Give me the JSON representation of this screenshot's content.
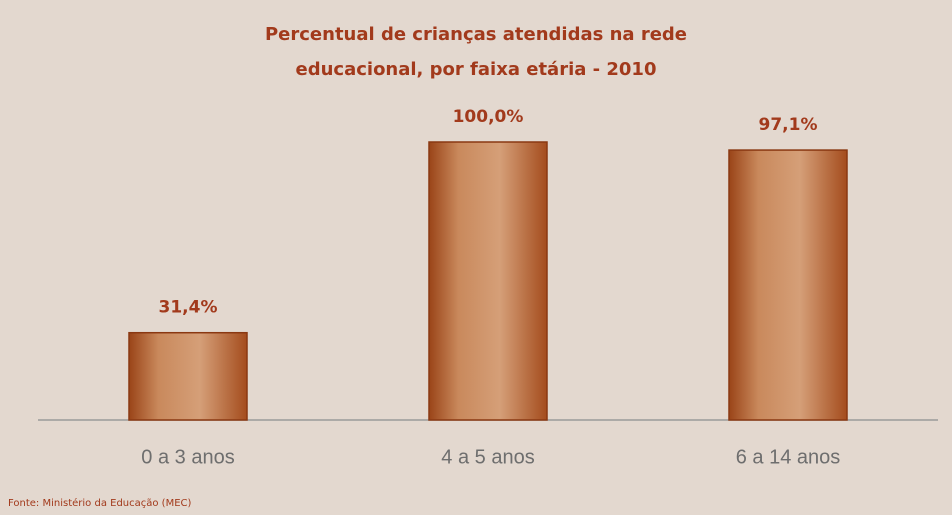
{
  "chart_data": {
    "type": "bar",
    "title": [
      "Percentual de crianças atendidas na rede",
      "educacional, por faixa etária - 2010"
    ],
    "categories": [
      "0 a 3 anos",
      "4 a 5 anos",
      "6 a 14 anos"
    ],
    "values": [
      31.4,
      100.0,
      97.1
    ],
    "value_labels": [
      "31,4%",
      "100,0%",
      "97,1%"
    ],
    "color": "#c0703f",
    "source": "Fonte: Ministério da Educação (MEC)"
  }
}
